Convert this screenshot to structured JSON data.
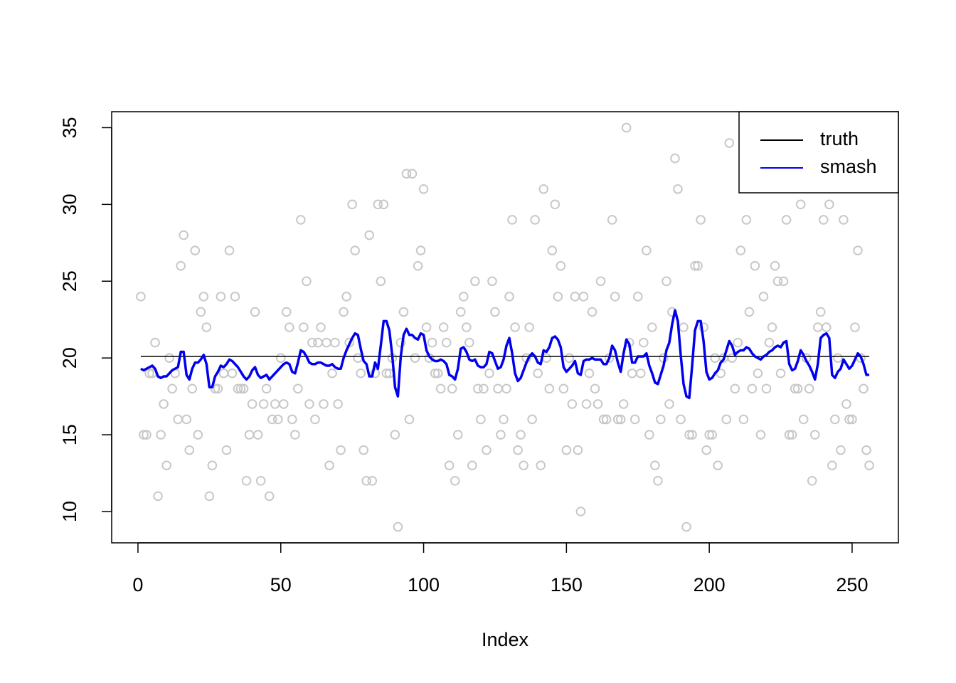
{
  "chart_data": {
    "type": "scatter",
    "xlabel": "Index",
    "x": [
      1,
      2,
      3,
      4,
      5,
      6,
      7,
      8,
      9,
      10,
      11,
      12,
      13,
      14,
      15,
      16,
      17,
      18,
      19,
      20,
      21,
      22,
      23,
      24,
      25,
      26,
      27,
      28,
      29,
      30,
      31,
      32,
      33,
      34,
      35,
      36,
      37,
      38,
      39,
      40,
      41,
      42,
      43,
      44,
      45,
      46,
      47,
      48,
      49,
      50,
      51,
      52,
      53,
      54,
      55,
      56,
      57,
      58,
      59,
      60,
      61,
      62,
      63,
      64,
      65,
      66,
      67,
      68,
      69,
      70,
      71,
      72,
      73,
      74,
      75,
      76,
      77,
      78,
      79,
      80,
      81,
      82,
      83,
      84,
      85,
      86,
      87,
      88,
      89,
      90,
      91,
      92,
      93,
      94,
      95,
      96,
      97,
      98,
      99,
      100,
      101,
      102,
      103,
      104,
      105,
      106,
      107,
      108,
      109,
      110,
      111,
      112,
      113,
      114,
      115,
      116,
      117,
      118,
      119,
      120,
      121,
      122,
      123,
      124,
      125,
      126,
      127,
      128,
      129,
      130,
      131,
      132,
      133,
      134,
      135,
      136,
      137,
      138,
      139,
      140,
      141,
      142,
      143,
      144,
      145,
      146,
      147,
      148,
      149,
      150,
      151,
      152,
      153,
      154,
      155,
      156,
      157,
      158,
      159,
      160,
      161,
      162,
      163,
      164,
      165,
      166,
      167,
      168,
      169,
      170,
      171,
      172,
      173,
      174,
      175,
      176,
      177,
      178,
      179,
      180,
      181,
      182,
      183,
      184,
      185,
      186,
      187,
      188,
      189,
      190,
      191,
      192,
      193,
      194,
      195,
      196,
      197,
      198,
      199,
      200,
      201,
      202,
      203,
      204,
      205,
      206,
      207,
      208,
      209,
      210,
      211,
      212,
      213,
      214,
      215,
      216,
      217,
      218,
      219,
      220,
      221,
      222,
      223,
      224,
      225,
      226,
      227,
      228,
      229,
      230,
      231,
      232,
      233,
      234,
      235,
      236,
      237,
      238,
      239,
      240,
      241,
      242,
      243,
      244,
      245,
      246,
      247,
      248,
      249,
      250,
      251,
      252,
      253,
      254,
      255,
      256
    ],
    "points": {
      "color": "#c8c8c8",
      "values": [
        24,
        15,
        15,
        19,
        19,
        21,
        11,
        15,
        17,
        13,
        20,
        18,
        19,
        16,
        26,
        28,
        16,
        14,
        18,
        27,
        15,
        23,
        24,
        22,
        11,
        13,
        18,
        18,
        24,
        19,
        14,
        27,
        19,
        24,
        18,
        18,
        18,
        12,
        15,
        17,
        23,
        15,
        12,
        17,
        18,
        11,
        16,
        17,
        16,
        20,
        17,
        23,
        22,
        16,
        15,
        18,
        29,
        22,
        25,
        17,
        21,
        16,
        21,
        22,
        17,
        21,
        13,
        19,
        21,
        17,
        14,
        23,
        24,
        21,
        30,
        27,
        20,
        19,
        14,
        12,
        28,
        12,
        19,
        30,
        25,
        30,
        19,
        19,
        20,
        15,
        9,
        21,
        23,
        32,
        16,
        32,
        20,
        26,
        27,
        31,
        22,
        20,
        21,
        19,
        19,
        18,
        22,
        21,
        13,
        18,
        12,
        15,
        23,
        24,
        22,
        21,
        13,
        25,
        18,
        16,
        18,
        14,
        19,
        25,
        23,
        18,
        15,
        16,
        18,
        24,
        29,
        22,
        14,
        15,
        13,
        20,
        22,
        16,
        29,
        19,
        13,
        31,
        20,
        18,
        27,
        30,
        24,
        26,
        18,
        14,
        20,
        17,
        24,
        14,
        10,
        24,
        17,
        19,
        23,
        18,
        17,
        25,
        16,
        16,
        20,
        29,
        24,
        16,
        16,
        17,
        35,
        21,
        19,
        16,
        24,
        19,
        21,
        27,
        15,
        22,
        13,
        12,
        16,
        20,
        25,
        17,
        23,
        33,
        31,
        16,
        22,
        9,
        15,
        15,
        26,
        26,
        29,
        22,
        14,
        15,
        15,
        20,
        13,
        19,
        20,
        16,
        34,
        20,
        18,
        21,
        27,
        16,
        29,
        23,
        18,
        26,
        19,
        15,
        24,
        18,
        21,
        22,
        26,
        25,
        19,
        25,
        29,
        15,
        15,
        18,
        18,
        30,
        16,
        20,
        18,
        12,
        15,
        22,
        23,
        29,
        22,
        30,
        13,
        16,
        20,
        14,
        29,
        17,
        16,
        16,
        22,
        27,
        20,
        18,
        14,
        13
      ]
    },
    "series": [
      {
        "name": "truth",
        "color": "#000000",
        "x": [
          1,
          256
        ],
        "values": [
          20.1,
          20.1
        ]
      },
      {
        "name": "smash",
        "color": "#0000ee",
        "values": [
          19.3,
          19.2,
          19.3,
          19.4,
          19.5,
          19.3,
          18.8,
          18.7,
          18.8,
          18.8,
          19.0,
          19.2,
          19.3,
          19.4,
          20.4,
          20.4,
          18.9,
          18.6,
          19.3,
          19.7,
          19.7,
          19.9,
          20.2,
          19.6,
          18.1,
          18.1,
          18.8,
          19.1,
          19.5,
          19.4,
          19.6,
          19.9,
          19.8,
          19.6,
          19.4,
          19.1,
          18.8,
          18.6,
          18.8,
          19.2,
          19.4,
          18.9,
          18.7,
          18.8,
          18.9,
          18.6,
          18.8,
          19.0,
          19.2,
          19.4,
          19.6,
          19.7,
          19.6,
          19.1,
          19.0,
          19.7,
          20.5,
          20.4,
          20.1,
          19.7,
          19.6,
          19.6,
          19.7,
          19.7,
          19.6,
          19.5,
          19.5,
          19.6,
          19.4,
          19.3,
          19.3,
          20.0,
          20.5,
          20.9,
          21.3,
          21.6,
          21.5,
          20.6,
          19.8,
          19.6,
          18.8,
          18.8,
          19.7,
          19.3,
          20.8,
          22.4,
          22.4,
          21.8,
          20.2,
          18.1,
          17.5,
          20.1,
          21.5,
          21.9,
          21.5,
          21.5,
          21.3,
          21.2,
          21.6,
          21.5,
          20.5,
          20.1,
          19.9,
          19.8,
          19.8,
          19.9,
          19.8,
          19.6,
          18.9,
          18.8,
          18.6,
          19.3,
          20.6,
          20.7,
          20.4,
          19.9,
          19.8,
          19.9,
          19.5,
          19.4,
          19.4,
          19.6,
          20.4,
          20.3,
          19.8,
          19.3,
          19.4,
          19.9,
          20.8,
          21.3,
          20.3,
          19.0,
          18.5,
          18.7,
          19.2,
          19.7,
          20.1,
          20.3,
          20.1,
          19.7,
          19.6,
          20.5,
          20.4,
          20.7,
          21.3,
          21.4,
          21.2,
          20.7,
          19.4,
          19.1,
          19.3,
          19.5,
          19.8,
          19.0,
          18.9,
          19.8,
          19.9,
          19.9,
          20.0,
          19.9,
          19.9,
          19.9,
          19.6,
          19.6,
          20.0,
          20.8,
          20.5,
          19.7,
          19.1,
          20.3,
          21.2,
          20.9,
          19.7,
          19.7,
          20.1,
          20.1,
          20.1,
          20.3,
          19.5,
          19.0,
          18.4,
          18.3,
          18.9,
          19.5,
          20.5,
          21.0,
          22.2,
          23.1,
          22.4,
          20.2,
          18.3,
          17.5,
          17.4,
          19.5,
          21.8,
          22.4,
          22.4,
          21.1,
          19.1,
          18.6,
          18.7,
          19.0,
          19.2,
          19.7,
          19.9,
          20.5,
          21.1,
          20.8,
          20.2,
          20.4,
          20.5,
          20.5,
          20.7,
          20.6,
          20.3,
          20.1,
          20.0,
          19.9,
          20.1,
          20.2,
          20.4,
          20.5,
          20.7,
          20.8,
          20.7,
          21.0,
          21.1,
          19.6,
          19.2,
          19.3,
          19.8,
          20.5,
          20.2,
          19.8,
          19.5,
          19.1,
          18.6,
          19.6,
          21.3,
          21.5,
          21.6,
          21.3,
          18.9,
          18.7,
          19.1,
          19.3,
          19.9,
          19.6,
          19.3,
          19.5,
          19.9,
          20.3,
          20.1,
          19.6,
          18.9,
          18.9
        ]
      }
    ],
    "xlim": [
      -9.2,
      266.2
    ],
    "ylim": [
      7.96,
      36.04
    ],
    "xticks": [
      0,
      50,
      100,
      150,
      200,
      250
    ],
    "yticks": [
      10,
      15,
      20,
      25,
      30,
      35
    ],
    "legend": "topright"
  }
}
